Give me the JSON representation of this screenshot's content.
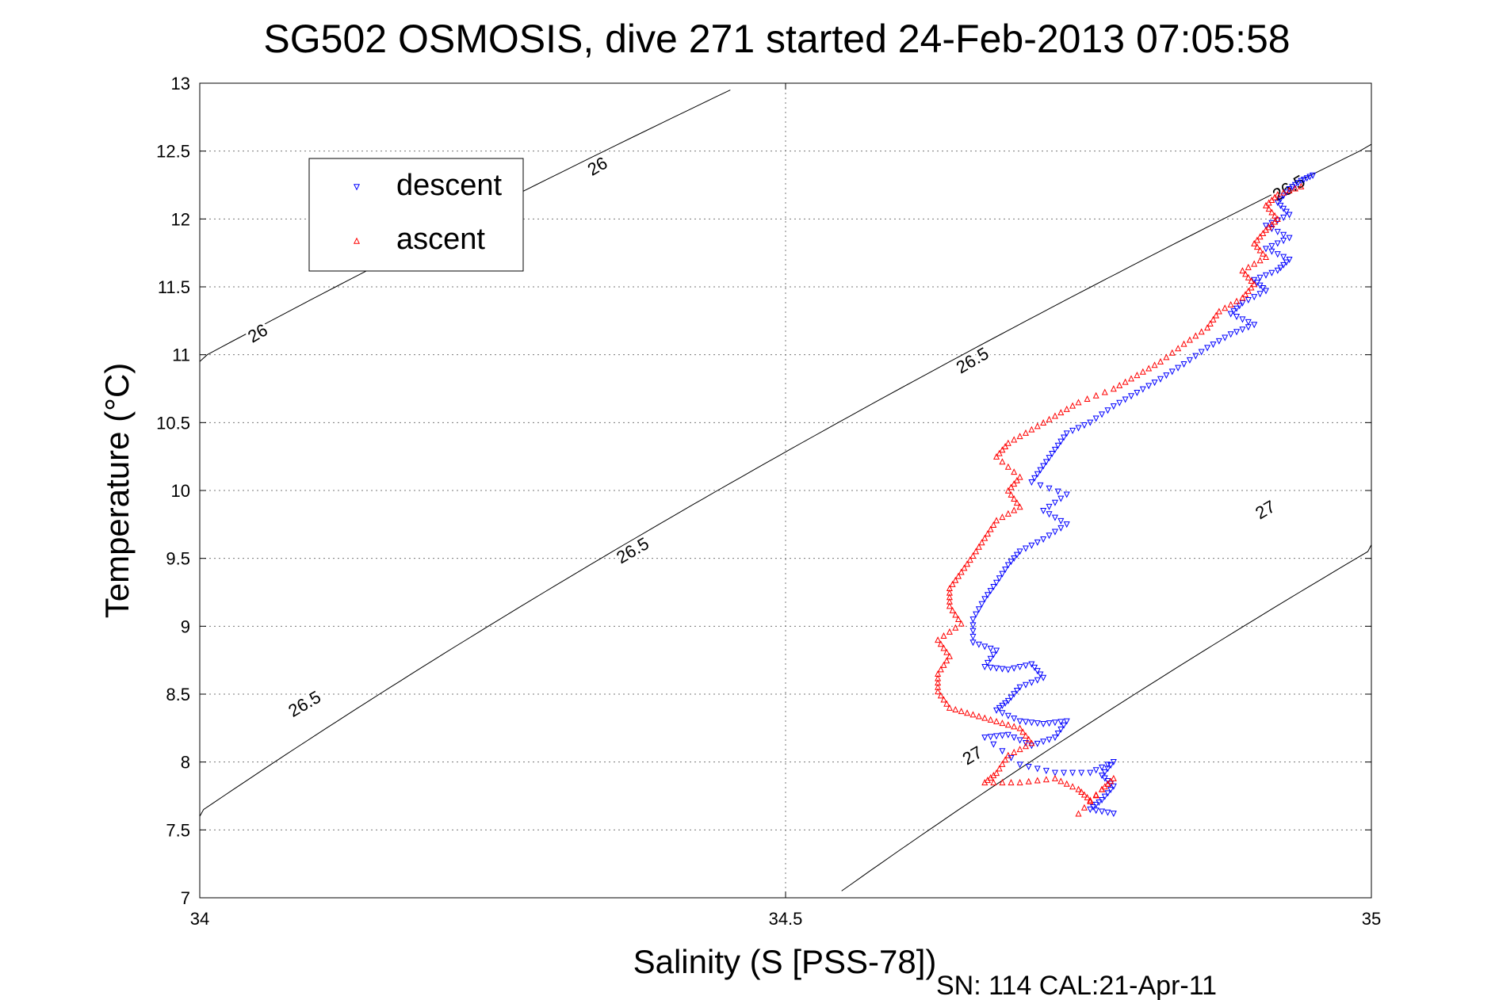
{
  "chart_data": {
    "type": "scatter",
    "title": "SG502 OSMOSIS, dive 271 started 24-Feb-2013 07:05:58",
    "xlabel": "Salinity (S [PSS-78])",
    "ylabel": "Temperature (°C)",
    "footer": "SN: 114  CAL:21-Apr-11",
    "xlim": [
      34,
      35
    ],
    "ylim": [
      7,
      13
    ],
    "xticks": [
      34,
      34.5,
      35
    ],
    "yticks": [
      7,
      7.5,
      8,
      8.5,
      9,
      9.5,
      10,
      10.5,
      11,
      11.5,
      12,
      12.5,
      13
    ],
    "grid": true,
    "legend_position": "top-left",
    "series": [
      {
        "name": "descent",
        "color": "#0000ff",
        "marker": "triangle-down",
        "points": [
          [
            34.95,
            12.32
          ],
          [
            34.94,
            12.28
          ],
          [
            34.93,
            12.22
          ],
          [
            34.92,
            12.12
          ],
          [
            34.93,
            12.03
          ],
          [
            34.91,
            11.95
          ],
          [
            34.93,
            11.86
          ],
          [
            34.91,
            11.78
          ],
          [
            34.93,
            11.7
          ],
          [
            34.92,
            11.62
          ],
          [
            34.9,
            11.55
          ],
          [
            34.91,
            11.47
          ],
          [
            34.89,
            11.38
          ],
          [
            34.88,
            11.3
          ],
          [
            34.9,
            11.22
          ],
          [
            34.88,
            11.15
          ],
          [
            34.86,
            11.05
          ],
          [
            34.84,
            10.93
          ],
          [
            34.82,
            10.82
          ],
          [
            34.8,
            10.72
          ],
          [
            34.78,
            10.62
          ],
          [
            34.76,
            10.5
          ],
          [
            34.74,
            10.42
          ],
          [
            34.73,
            10.3
          ],
          [
            34.72,
            10.18
          ],
          [
            34.71,
            10.06
          ],
          [
            34.74,
            9.97
          ],
          [
            34.72,
            9.85
          ],
          [
            34.74,
            9.75
          ],
          [
            34.72,
            9.64
          ],
          [
            34.7,
            9.55
          ],
          [
            34.69,
            9.45
          ],
          [
            34.68,
            9.32
          ],
          [
            34.67,
            9.2
          ],
          [
            34.66,
            9.05
          ],
          [
            34.66,
            8.88
          ],
          [
            34.68,
            8.82
          ],
          [
            34.67,
            8.7
          ],
          [
            34.69,
            8.68
          ],
          [
            34.71,
            8.72
          ],
          [
            34.72,
            8.62
          ],
          [
            34.7,
            8.55
          ],
          [
            34.69,
            8.45
          ],
          [
            34.68,
            8.38
          ],
          [
            34.7,
            8.3
          ],
          [
            34.72,
            8.28
          ],
          [
            34.74,
            8.3
          ],
          [
            34.73,
            8.18
          ],
          [
            34.71,
            8.12
          ],
          [
            34.69,
            8.2
          ],
          [
            34.67,
            8.18
          ],
          [
            34.7,
            7.98
          ],
          [
            34.73,
            7.92
          ],
          [
            34.76,
            7.92
          ],
          [
            34.78,
            8.0
          ],
          [
            34.77,
            7.9
          ],
          [
            34.78,
            7.82
          ],
          [
            34.77,
            7.72
          ],
          [
            34.76,
            7.65
          ],
          [
            34.78,
            7.62
          ]
        ]
      },
      {
        "name": "ascent",
        "color": "#ff0000",
        "marker": "triangle-up",
        "points": [
          [
            34.94,
            12.24
          ],
          [
            34.92,
            12.18
          ],
          [
            34.91,
            12.1
          ],
          [
            34.92,
            12.0
          ],
          [
            34.91,
            11.92
          ],
          [
            34.9,
            11.82
          ],
          [
            34.91,
            11.72
          ],
          [
            34.89,
            11.62
          ],
          [
            34.9,
            11.52
          ],
          [
            34.89,
            11.42
          ],
          [
            34.87,
            11.32
          ],
          [
            34.86,
            11.2
          ],
          [
            34.84,
            11.08
          ],
          [
            34.82,
            10.95
          ],
          [
            34.8,
            10.85
          ],
          [
            34.78,
            10.75
          ],
          [
            34.75,
            10.65
          ],
          [
            34.73,
            10.55
          ],
          [
            34.71,
            10.45
          ],
          [
            34.69,
            10.35
          ],
          [
            34.68,
            10.25
          ],
          [
            34.7,
            10.1
          ],
          [
            34.69,
            10.0
          ],
          [
            34.7,
            9.88
          ],
          [
            34.68,
            9.78
          ],
          [
            34.67,
            9.65
          ],
          [
            34.66,
            9.52
          ],
          [
            34.65,
            9.4
          ],
          [
            34.64,
            9.28
          ],
          [
            34.64,
            9.15
          ],
          [
            34.65,
            9.02
          ],
          [
            34.63,
            8.9
          ],
          [
            34.64,
            8.78
          ],
          [
            34.63,
            8.65
          ],
          [
            34.63,
            8.52
          ],
          [
            34.64,
            8.4
          ],
          [
            34.66,
            8.35
          ],
          [
            34.68,
            8.3
          ],
          [
            34.7,
            8.25
          ],
          [
            34.71,
            8.14
          ],
          [
            34.69,
            8.05
          ],
          [
            34.68,
            7.92
          ],
          [
            34.67,
            7.85
          ],
          [
            34.7,
            7.85
          ],
          [
            34.73,
            7.88
          ],
          [
            34.75,
            7.8
          ],
          [
            34.76,
            7.72
          ],
          [
            34.78,
            7.88
          ],
          [
            34.77,
            7.8
          ],
          [
            34.75,
            7.62
          ]
        ]
      }
    ],
    "isopycnals": [
      {
        "label": "26",
        "sigma": 26.0,
        "label_positions": [
          [
            34.05,
            11.15
          ],
          [
            34.34,
            12.38
          ]
        ]
      },
      {
        "label": "26.5",
        "sigma": 26.5,
        "label_positions": [
          [
            34.09,
            8.42
          ],
          [
            34.37,
            9.55
          ],
          [
            34.66,
            10.95
          ],
          [
            34.93,
            12.22
          ]
        ]
      },
      {
        "label": "27",
        "sigma": 27.0,
        "label_positions": [
          [
            34.66,
            8.04
          ],
          [
            34.91,
            9.85
          ]
        ]
      }
    ]
  }
}
